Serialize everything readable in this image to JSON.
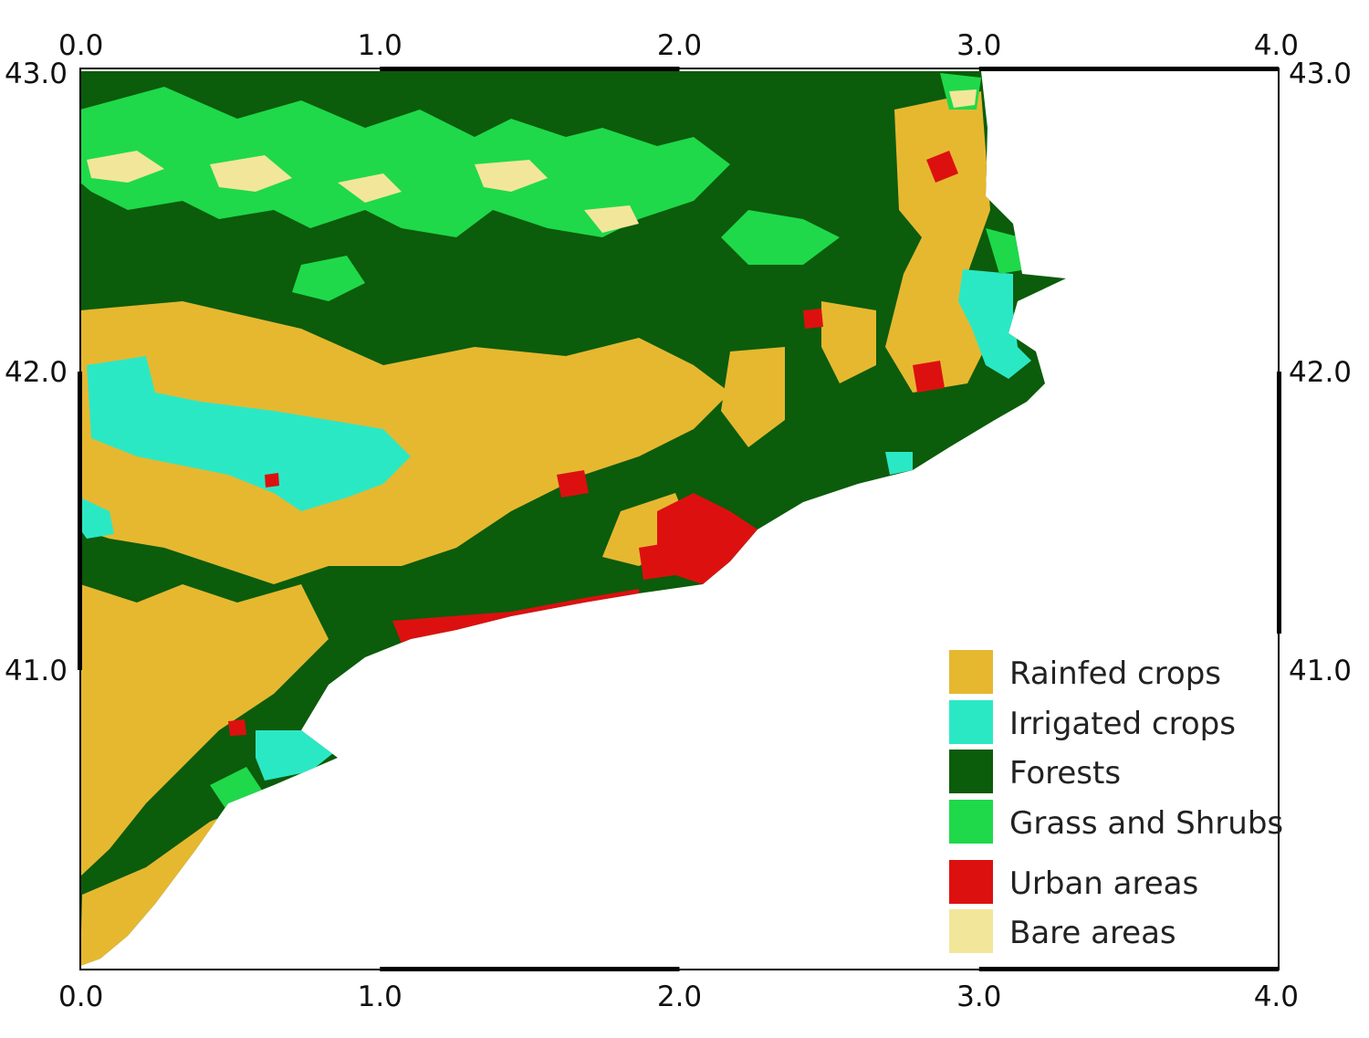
{
  "map": {
    "x_axis": {
      "min": 0.0,
      "max": 4.0,
      "ticks": [
        "0.0",
        "1.0",
        "2.0",
        "3.0",
        "4.0"
      ]
    },
    "y_axis": {
      "min": 40.0,
      "max": 43.0,
      "ticks": [
        "43.0",
        "42.0",
        "41.0"
      ]
    },
    "frame_color": "#000000",
    "sea_color": "#ffffff"
  },
  "legend": {
    "placement": "bottom-right",
    "items": [
      {
        "label": "Rainfed crops",
        "color": "#e6b830"
      },
      {
        "label": "Irrigated crops",
        "color": "#2be8c5"
      },
      {
        "label": "Forests",
        "color": "#0b5c0b"
      },
      {
        "label": "Grass and Shrubs",
        "color": "#1fd94a"
      },
      {
        "label": "Urban areas",
        "color": "#dd1010"
      },
      {
        "label": "Bare areas",
        "color": "#f2e69a"
      }
    ]
  }
}
